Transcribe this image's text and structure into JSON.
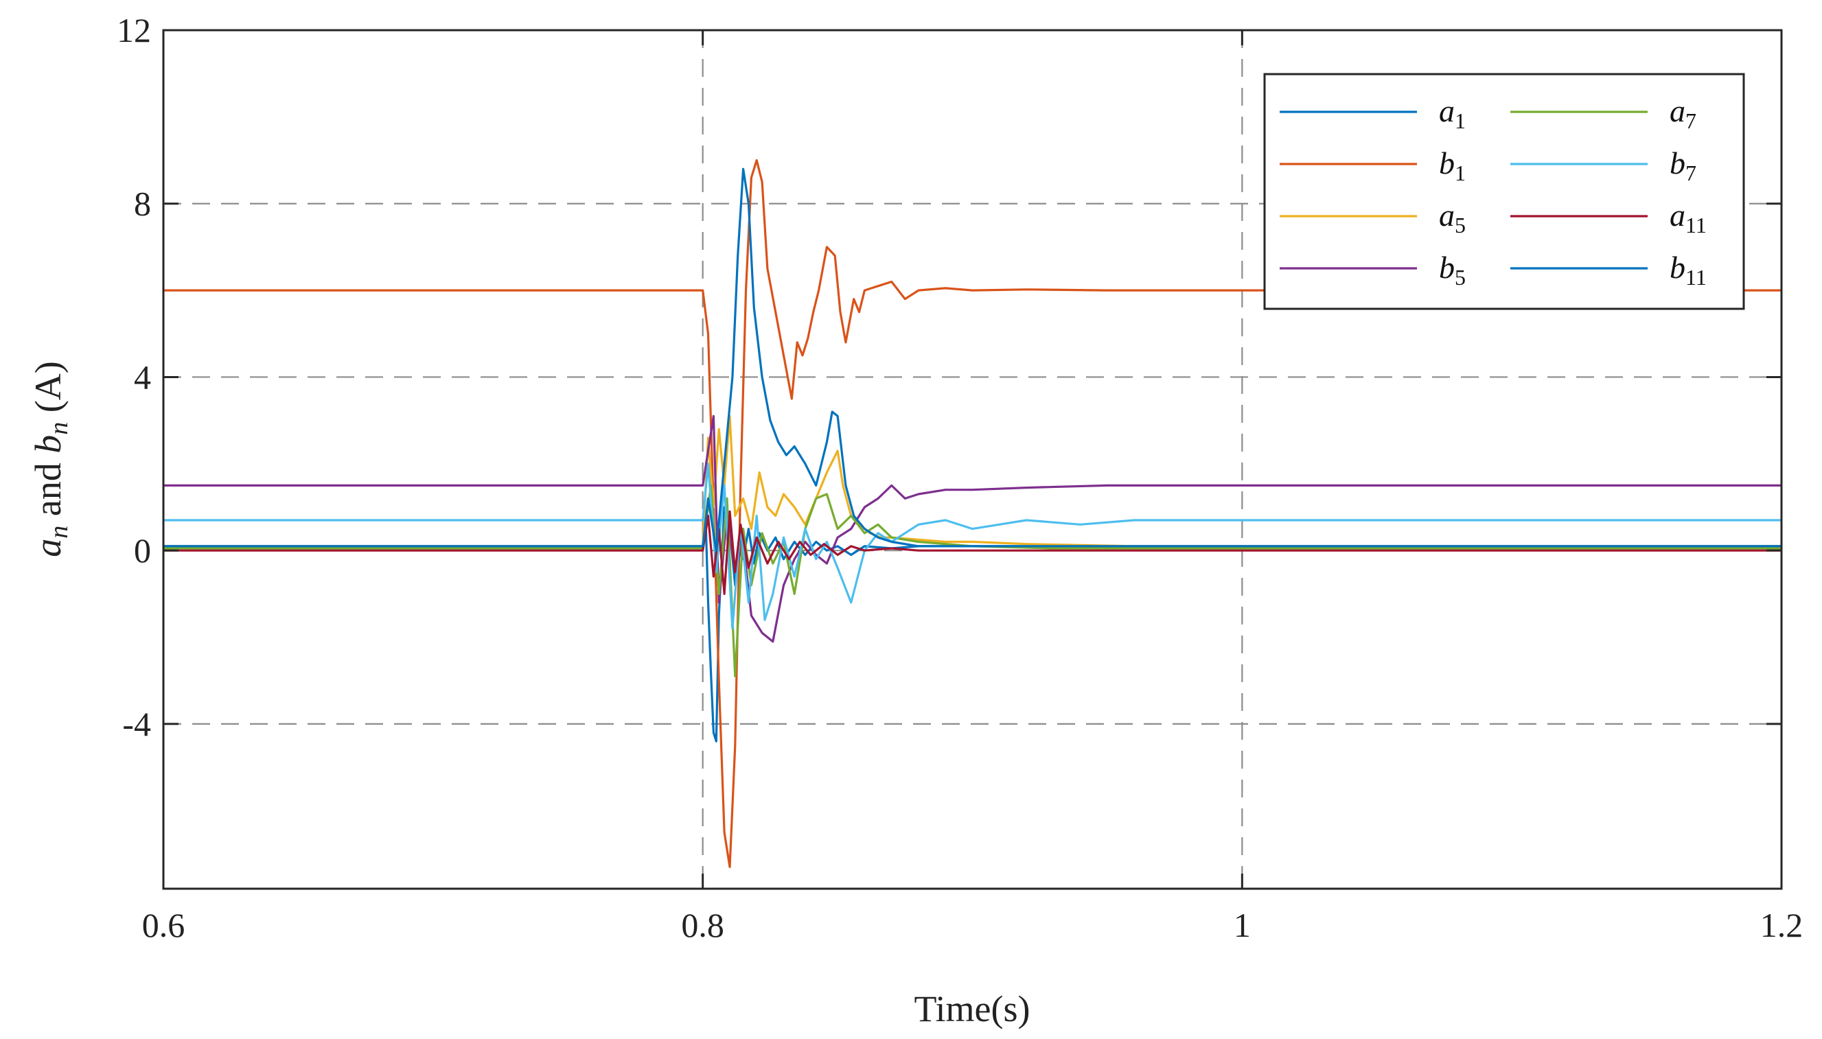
{
  "chart_data": {
    "type": "line",
    "xlabel": "Time(s)",
    "ylabel": {
      "a": "a",
      "a_sub": "n",
      "mid": " and ",
      "b": "b",
      "b_sub": "n",
      "unit": " (A)"
    },
    "xlim": [
      0.6,
      1.2
    ],
    "ylim": [
      -7.8,
      12
    ],
    "x_ticks": [
      0.6,
      0.8,
      1.0,
      1.2
    ],
    "x_tick_labels": [
      "0.6",
      "0.8",
      "1",
      "1.2"
    ],
    "y_ticks": [
      -4,
      0,
      4,
      8,
      12
    ],
    "y_tick_labels": [
      "-4",
      "0",
      "4",
      "8",
      "12"
    ],
    "grid": "dashed",
    "legend_placement": "top-right",
    "series": [
      {
        "name": "a1",
        "base": "a",
        "sub": "1",
        "color": "#0072BD",
        "x": [
          0.6,
          0.8,
          0.801,
          0.802,
          0.803,
          0.804,
          0.805,
          0.806,
          0.808,
          0.81,
          0.812,
          0.814,
          0.815,
          0.817,
          0.819,
          0.821,
          0.824,
          0.827,
          0.83,
          0.834,
          0.838,
          0.842,
          0.846,
          0.85,
          0.855,
          0.86,
          0.87,
          0.88,
          0.9,
          0.93,
          1.0,
          1.2
        ],
        "y": [
          0.1,
          0.1,
          0.9,
          -1.2,
          -2.8,
          -4.2,
          -4.4,
          -1.5,
          1.0,
          0.5,
          -0.8,
          0.3,
          -0.2,
          0.5,
          -0.3,
          0.4,
          0.0,
          0.3,
          -0.2,
          0.2,
          -0.1,
          0.2,
          0.0,
          0.1,
          -0.1,
          0.1,
          0.05,
          0.1,
          0.1,
          0.1,
          0.1,
          0.1
        ]
      },
      {
        "name": "b1",
        "base": "b",
        "sub": "1",
        "color": "#D95319",
        "x": [
          0.6,
          0.8,
          0.802,
          0.804,
          0.806,
          0.808,
          0.81,
          0.812,
          0.814,
          0.816,
          0.818,
          0.82,
          0.822,
          0.824,
          0.827,
          0.83,
          0.833,
          0.835,
          0.837,
          0.839,
          0.841,
          0.843,
          0.846,
          0.849,
          0.851,
          0.853,
          0.856,
          0.858,
          0.86,
          0.865,
          0.87,
          0.875,
          0.88,
          0.89,
          0.9,
          0.92,
          0.95,
          1.0,
          1.2
        ],
        "y": [
          6.0,
          6.0,
          5.0,
          1.0,
          -3.0,
          -6.5,
          -7.3,
          -4.5,
          1.5,
          6.0,
          8.6,
          9.0,
          8.5,
          6.5,
          5.5,
          4.5,
          3.5,
          4.8,
          4.5,
          4.9,
          5.5,
          6.0,
          7.0,
          6.8,
          5.5,
          4.8,
          5.8,
          5.5,
          6.0,
          6.1,
          6.2,
          5.8,
          6.0,
          6.05,
          6.0,
          6.02,
          6.0,
          6.0,
          6.0
        ]
      },
      {
        "name": "a5",
        "base": "a",
        "sub": "5",
        "color": "#EDB120",
        "x": [
          0.6,
          0.8,
          0.802,
          0.804,
          0.806,
          0.808,
          0.81,
          0.812,
          0.815,
          0.818,
          0.821,
          0.824,
          0.827,
          0.83,
          0.834,
          0.838,
          0.842,
          0.846,
          0.85,
          0.852,
          0.855,
          0.858,
          0.862,
          0.866,
          0.87,
          0.88,
          0.89,
          0.9,
          0.92,
          0.96,
          1.0,
          1.2
        ],
        "y": [
          0.1,
          0.1,
          2.6,
          1.0,
          2.8,
          1.5,
          3.1,
          0.8,
          1.2,
          0.5,
          1.8,
          1.0,
          0.8,
          1.3,
          1.0,
          0.6,
          1.2,
          1.8,
          2.3,
          1.5,
          0.8,
          0.6,
          0.4,
          0.3,
          0.3,
          0.25,
          0.2,
          0.2,
          0.15,
          0.1,
          0.1,
          0.1
        ]
      },
      {
        "name": "b5",
        "base": "b",
        "sub": "5",
        "color": "#7E2F8E",
        "x": [
          0.6,
          0.8,
          0.802,
          0.804,
          0.806,
          0.809,
          0.812,
          0.815,
          0.818,
          0.822,
          0.826,
          0.83,
          0.834,
          0.838,
          0.842,
          0.846,
          0.85,
          0.855,
          0.86,
          0.865,
          0.87,
          0.875,
          0.88,
          0.89,
          0.9,
          0.92,
          0.95,
          1.0,
          1.2
        ],
        "y": [
          1.5,
          1.5,
          2.3,
          3.1,
          -1.2,
          0.8,
          -0.5,
          0.2,
          -1.5,
          -1.9,
          -2.1,
          -0.8,
          -0.2,
          0.2,
          -0.1,
          -0.3,
          0.3,
          0.5,
          1.0,
          1.2,
          1.5,
          1.2,
          1.3,
          1.4,
          1.4,
          1.45,
          1.5,
          1.5,
          1.5
        ]
      },
      {
        "name": "a7",
        "base": "a",
        "sub": "7",
        "color": "#77AC30",
        "x": [
          0.6,
          0.8,
          0.803,
          0.806,
          0.809,
          0.812,
          0.815,
          0.818,
          0.822,
          0.826,
          0.83,
          0.834,
          0.838,
          0.842,
          0.846,
          0.85,
          0.855,
          0.86,
          0.865,
          0.87,
          0.88,
          0.9,
          0.93,
          1.0,
          1.2
        ],
        "y": [
          0.05,
          0.05,
          1.5,
          -1.0,
          1.2,
          -2.9,
          0.5,
          -0.8,
          0.4,
          -0.3,
          0.2,
          -1.0,
          0.5,
          1.2,
          1.3,
          0.5,
          0.8,
          0.4,
          0.6,
          0.3,
          0.2,
          0.1,
          0.05,
          0.05,
          0.05
        ]
      },
      {
        "name": "b7",
        "base": "b",
        "sub": "7",
        "color": "#4DBEEE",
        "x": [
          0.6,
          0.8,
          0.802,
          0.805,
          0.808,
          0.811,
          0.814,
          0.817,
          0.82,
          0.823,
          0.826,
          0.83,
          0.834,
          0.838,
          0.842,
          0.846,
          0.85,
          0.855,
          0.86,
          0.865,
          0.87,
          0.88,
          0.89,
          0.9,
          0.92,
          0.94,
          0.96,
          1.0,
          1.2
        ],
        "y": [
          0.7,
          0.7,
          2.0,
          -0.5,
          1.5,
          -1.8,
          0.6,
          -1.2,
          0.8,
          -1.6,
          -1.0,
          0.3,
          -0.6,
          0.5,
          -0.2,
          0.2,
          -0.4,
          -1.2,
          0.0,
          0.4,
          0.2,
          0.6,
          0.7,
          0.5,
          0.7,
          0.6,
          0.7,
          0.7,
          0.7
        ]
      },
      {
        "name": "a11",
        "base": "a",
        "sub": "11",
        "color": "#A2142F",
        "x": [
          0.6,
          0.8,
          0.802,
          0.804,
          0.806,
          0.808,
          0.81,
          0.812,
          0.814,
          0.817,
          0.82,
          0.824,
          0.828,
          0.832,
          0.836,
          0.84,
          0.845,
          0.85,
          0.855,
          0.86,
          0.87,
          0.88,
          0.9,
          1.0,
          1.2
        ],
        "y": [
          0.0,
          0.0,
          0.8,
          -0.6,
          0.5,
          -1.0,
          0.9,
          -0.5,
          0.6,
          -0.4,
          0.3,
          -0.3,
          0.2,
          -0.2,
          0.2,
          -0.1,
          0.15,
          -0.1,
          0.1,
          0.0,
          0.05,
          0.0,
          0.0,
          0.0,
          0.0
        ]
      },
      {
        "name": "b11",
        "base": "b",
        "sub": "11",
        "color": "#0072BD",
        "x": [
          0.6,
          0.8,
          0.802,
          0.805,
          0.808,
          0.811,
          0.813,
          0.815,
          0.817,
          0.819,
          0.822,
          0.825,
          0.828,
          0.831,
          0.834,
          0.838,
          0.842,
          0.846,
          0.848,
          0.85,
          0.853,
          0.856,
          0.86,
          0.865,
          0.87,
          0.88,
          0.9,
          0.95,
          1.0,
          1.2
        ],
        "y": [
          0.1,
          0.1,
          1.2,
          0.0,
          2.0,
          4.0,
          6.8,
          8.8,
          8.0,
          5.6,
          4.0,
          3.0,
          2.5,
          2.2,
          2.4,
          2.0,
          1.5,
          2.5,
          3.2,
          3.1,
          1.5,
          0.8,
          0.5,
          0.3,
          0.2,
          0.1,
          0.1,
          0.1,
          0.1,
          0.1
        ]
      }
    ]
  }
}
